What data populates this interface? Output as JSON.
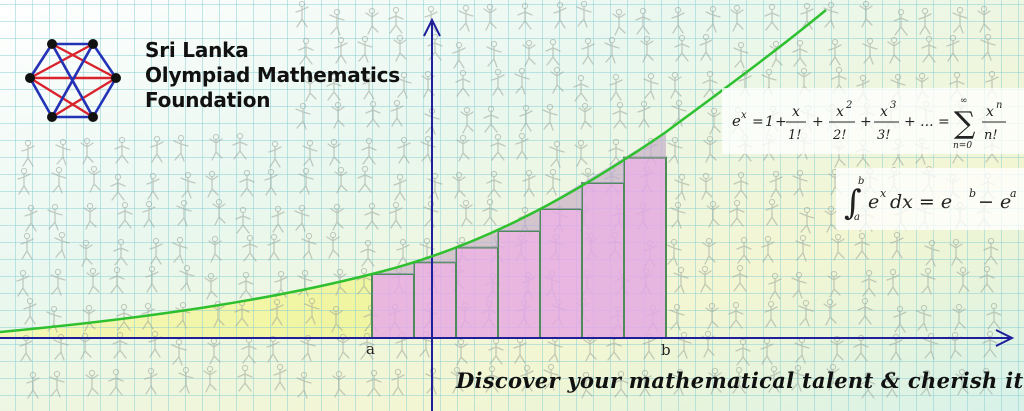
{
  "organization": {
    "name_lines": [
      "Sri Lanka",
      "Olympiad Mathematics",
      "Foundation"
    ],
    "logo_icon": "hexagon-complete-graph-icon"
  },
  "axis_labels": {
    "a": "a",
    "b": "b"
  },
  "formulas": {
    "series": {
      "lhs_base": "e",
      "lhs_exp": "x",
      "equals": "=",
      "one": "1",
      "plus": "+",
      "t1_num": "x",
      "t1_den": "1!",
      "t2_num": "x",
      "t2_exp": "2",
      "t2_den": "2!",
      "t3_num": "x",
      "t3_exp": "3",
      "t3_den": "3!",
      "ellipsis": "+ ... =",
      "sigma": "∑",
      "sigma_top": "∞",
      "sigma_bottom": "n=0",
      "tn_num": "x",
      "tn_exp": "n",
      "tn_den": "n!"
    },
    "integral": {
      "symbol": "∫",
      "upper": "b",
      "lower": "a",
      "integrand": "e",
      "integrand_exp": "x",
      "dx": "dx = e",
      "rhs_exp1": "b",
      "minus": "− e",
      "rhs_exp2": "a"
    }
  },
  "tagline": "Discover your mathematical talent & cherish it...!",
  "colors": {
    "grid": "#8fd0d6",
    "axis": "#1f1f9a",
    "curve": "#2fc02f",
    "riemann_fill": "#e7a6ee",
    "riemann_stroke": "#4f8a5a",
    "logo_red": "#d9232d",
    "logo_blue": "#2233b8"
  }
}
